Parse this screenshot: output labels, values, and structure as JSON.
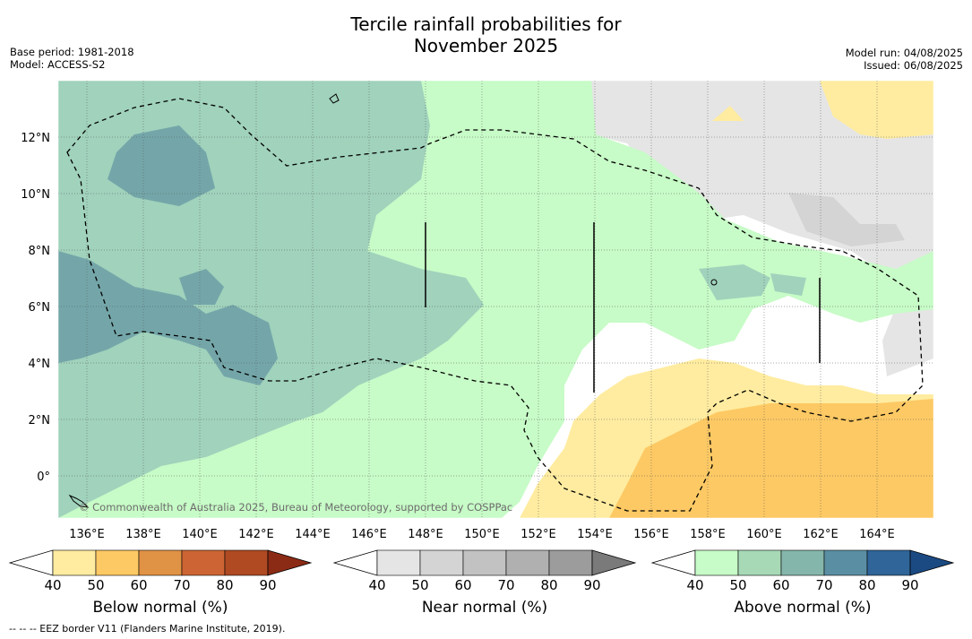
{
  "title_line1": "Tercile rainfall probabilities for",
  "title_line2": "November 2025",
  "left_meta": {
    "line1": "Base period: 1981-2018",
    "line2": "Model: ACCESS-S2"
  },
  "right_meta": {
    "line1": "Model run: 04/08/2025",
    "line2": "Issued: 06/08/2025"
  },
  "attribution": "© Commonwealth of Australia 2025, Bureau of Meteorology, supported by COSPPac",
  "footnote": "--  --  -- EEZ border V11 (Flanders Marine Institute, 2019).",
  "x_ticks": [
    "136°E",
    "138°E",
    "140°E",
    "142°E",
    "144°E",
    "146°E",
    "148°E",
    "150°E",
    "152°E",
    "154°E",
    "156°E",
    "158°E",
    "160°E",
    "162°E",
    "164°E"
  ],
  "y_ticks": [
    "12°N",
    "10°N",
    "8°N",
    "6°N",
    "4°N",
    "2°N",
    "0°"
  ],
  "colorbars": [
    {
      "title": "Below normal (%)",
      "labels": [
        "40",
        "50",
        "60",
        "70",
        "80",
        "90"
      ],
      "colors": [
        "#ffffff",
        "#ffeca0",
        "#fdc964",
        "#e09245",
        "#cc6533",
        "#b04a23",
        "#8c2b15"
      ]
    },
    {
      "title": "Near normal (%)",
      "labels": [
        "40",
        "50",
        "60",
        "70",
        "80",
        "90"
      ],
      "colors": [
        "#ffffff",
        "#e5e5e5",
        "#d4d4d4",
        "#c2c2c2",
        "#b0b0b0",
        "#9c9c9c",
        "#7a7a7a"
      ]
    },
    {
      "title": "Above normal (%)",
      "labels": [
        "40",
        "50",
        "60",
        "70",
        "80",
        "90"
      ],
      "colors": [
        "#ffffff",
        "#c7fbc7",
        "#a7d9b7",
        "#85b6ab",
        "#5a8ea3",
        "#2f6598",
        "#1b4a83"
      ]
    }
  ],
  "map_colors": {
    "above_40": "#c7fbc7",
    "above_50": "#a0d2bc",
    "above_60": "#74a6a9",
    "below_40": "#ffeca0",
    "below_50": "#fdc964",
    "near_40": "#e5e5e5",
    "near_50": "#d4d4d4"
  }
}
